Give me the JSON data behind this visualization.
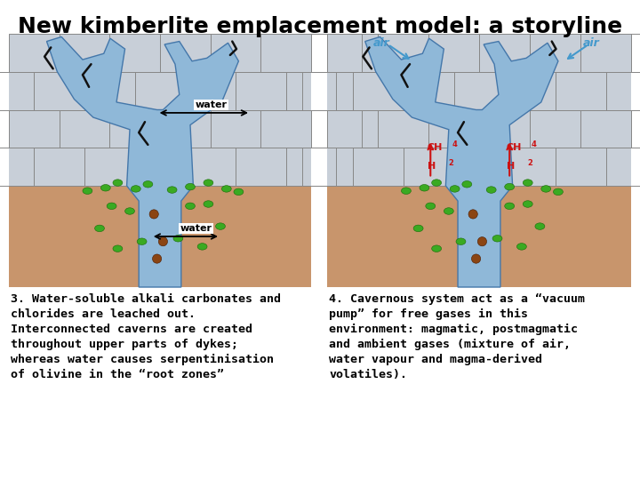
{
  "title": "New kimberlite emplacement model: a storyline",
  "title_fontsize": 18,
  "title_fontweight": "bold",
  "background_color": "#ffffff",
  "caption_left_lines": [
    "3. Water-soluble alkali carbonates and",
    "chlorides are leached out.",
    "Interconnected caverns are created",
    "throughout upper parts of dykes;",
    "whereas water causes serpentinisation",
    "of olivine in the “root zones”"
  ],
  "caption_right_lines": [
    "4. Cavernous system act as a “vacuum",
    "pump” for free gases in this",
    "environment: magmatic, postmagmatic",
    "and ambient gases (mixture of air,",
    "water vapour and magma-derived",
    "volatiles)."
  ],
  "caption_fontsize": 9.5,
  "caption_fontweight": "bold",
  "caption_color": "#000000",
  "stone_color": "#c8cfd8",
  "stone_border_color": "#888888",
  "soil_color": "#c8956c",
  "dike_fill": "#8fb8d8",
  "dike_edge": "#4477aa",
  "green_color": "#3aaa22",
  "green_edge": "#1a6a08",
  "brown_color": "#8b4513",
  "brown_edge": "#4a1a00",
  "air_color": "#4499cc",
  "gas_color": "#cc1111",
  "black": "#111111",
  "white": "#ffffff"
}
